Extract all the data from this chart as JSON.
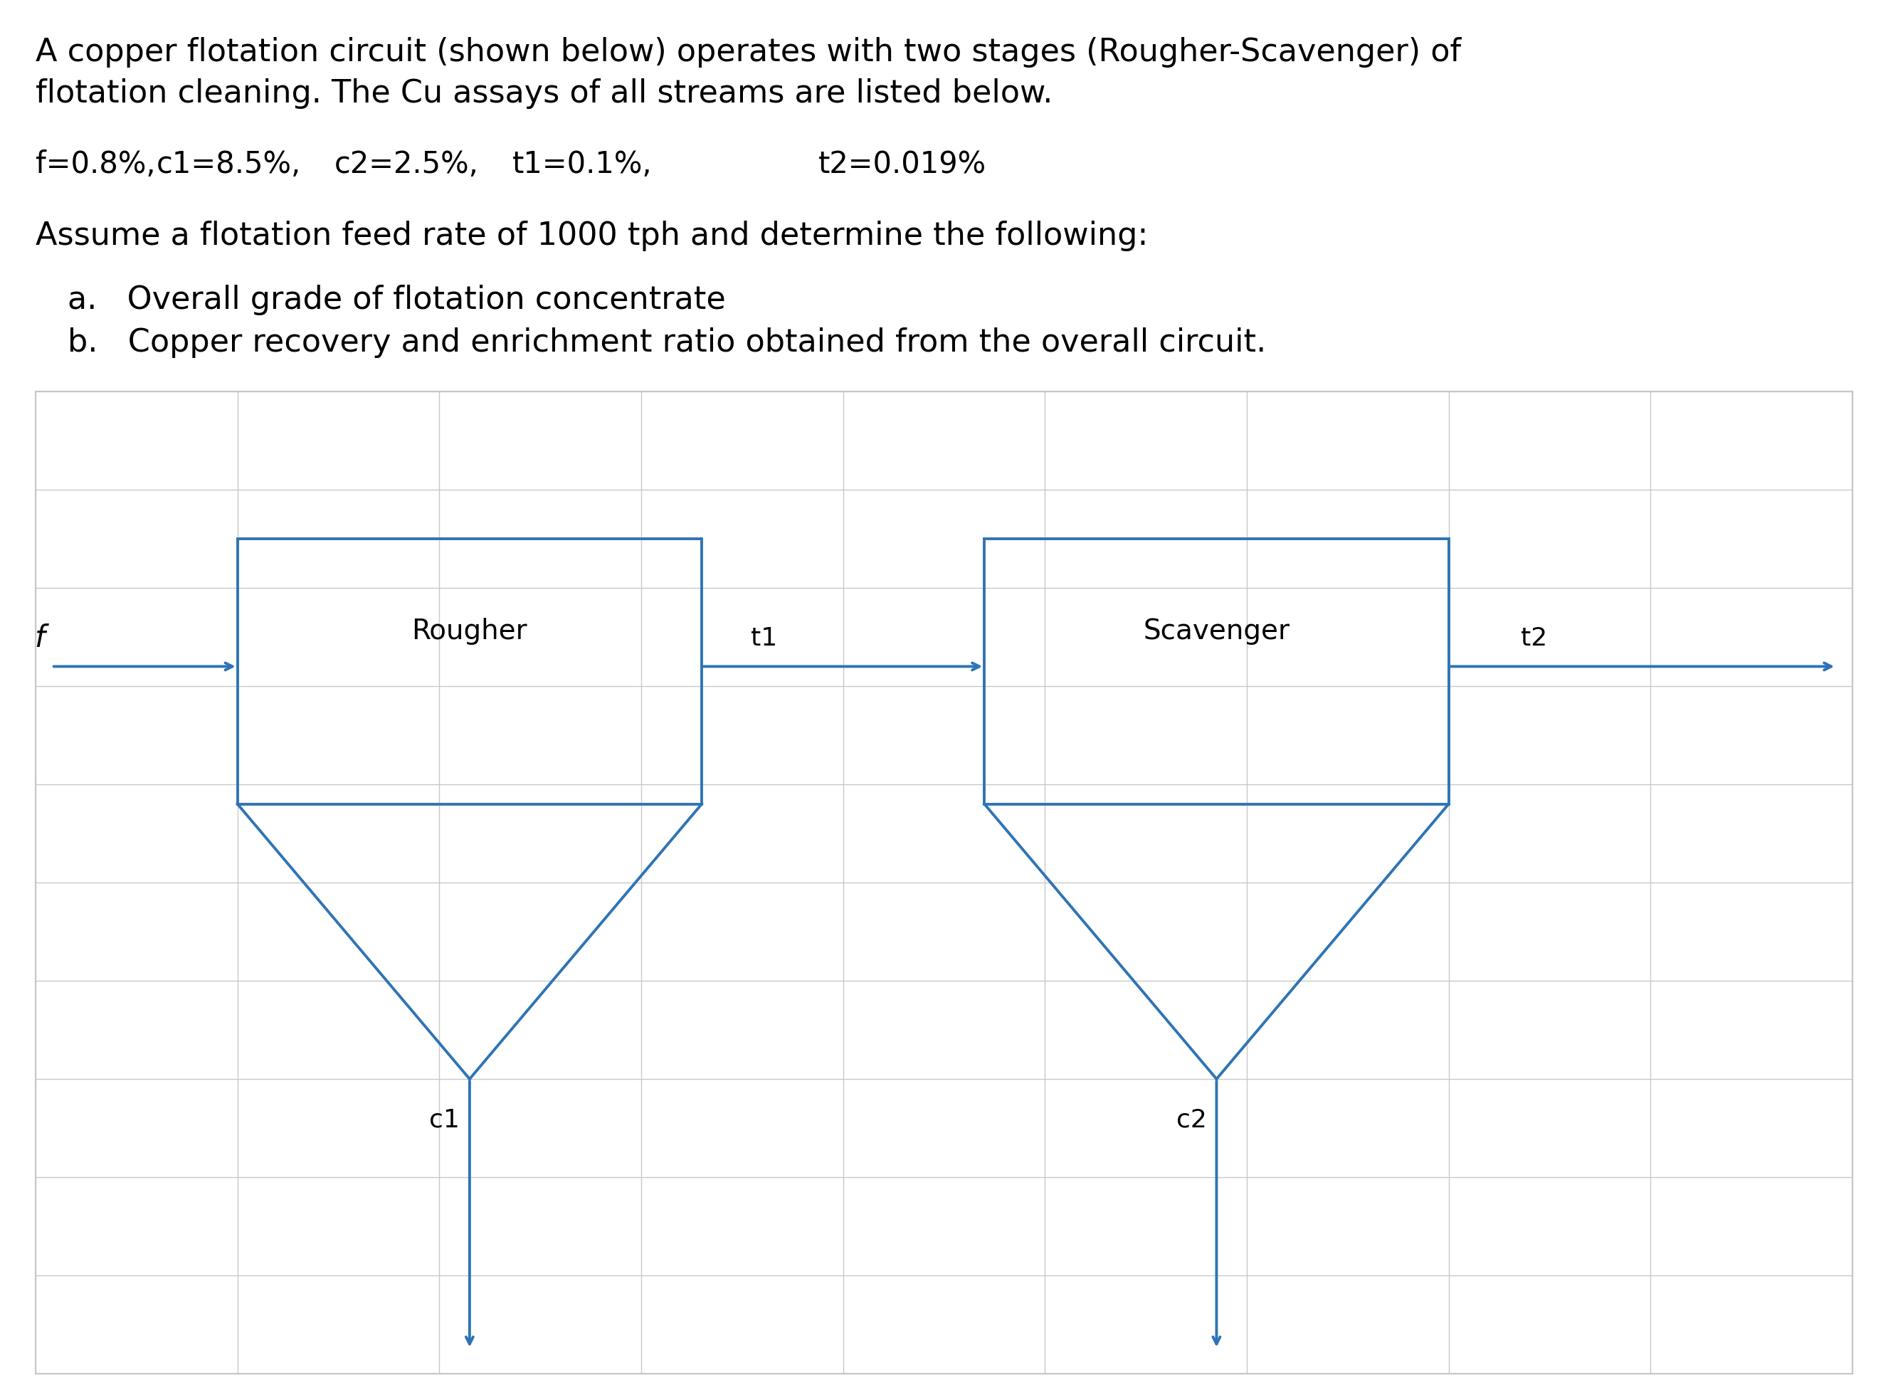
{
  "title_line1": "A copper flotation circuit (shown below) operates with two stages (Rougher-Scavenger) of",
  "title_line2": "flotation cleaning. The Cu assays of all streams are listed below.",
  "params_f": "f=0.8%,",
  "params_c1": "c1=8.5%,",
  "params_c2": "c2=2.5%,",
  "params_t1": "t1=0.1%,",
  "params_t2": "t2=0.019%",
  "assume_line": "Assume a flotation feed rate of 1000 tph and determine the following:",
  "item_a": "a.   Overall grade of flotation concentrate",
  "item_b": "b.   Copper recovery and enrichment ratio obtained from the overall circuit.",
  "diagram_color": "#2E74B5",
  "grid_color": "#C8C8C8",
  "background_color": "#FFFFFF",
  "text_color": "#000000",
  "rougher_label": "Rougher",
  "scavenger_label": "Scavenger",
  "font_size_title": 32,
  "font_size_params": 30,
  "font_size_diagram_label": 28,
  "font_size_stream": 26
}
